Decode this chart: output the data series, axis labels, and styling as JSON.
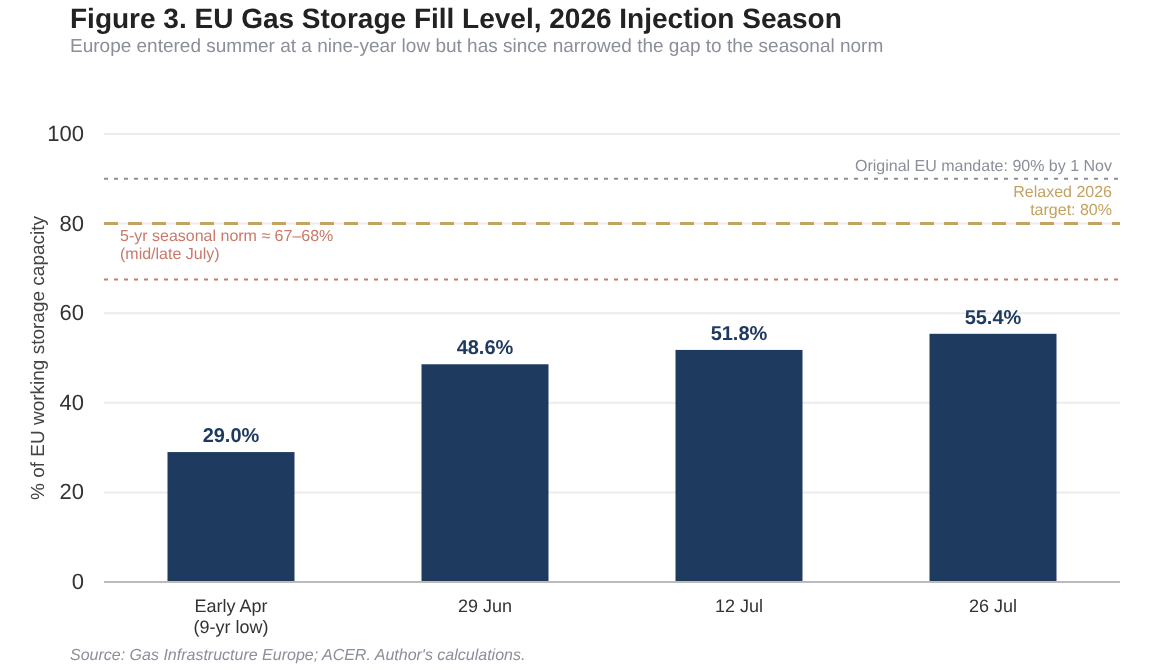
{
  "chart_data": {
    "type": "bar",
    "title": "Figure 3.  EU Gas Storage Fill Level, 2026 Injection Season",
    "subtitle": "Europe entered summer at a nine-year low but has since narrowed the gap to the seasonal norm",
    "ylabel": "% of EU working storage capacity",
    "categories": [
      "Early Apr\n(9-yr low)",
      "29 Jun",
      "12 Jul",
      "26 Jul"
    ],
    "values": [
      29.0,
      48.6,
      51.8,
      55.4
    ],
    "value_labels": [
      "29.0%",
      "48.6%",
      "51.8%",
      "55.4%"
    ],
    "color": "#1e3a5f",
    "ylim": [
      0,
      100
    ],
    "yticks": [
      0,
      20,
      40,
      60,
      80,
      100
    ],
    "grid": "y",
    "ref_lines": [
      {
        "axis": "y",
        "value": 90,
        "label": "Original EU mandate: 90% by 1 Nov",
        "color": "#8a8f99",
        "line_style": "dotted"
      },
      {
        "axis": "y",
        "value": 80,
        "label": "Relaxed 2026\ntarget: 80%",
        "color": "#c4a261",
        "line_style": "dashed"
      },
      {
        "axis": "y",
        "value": 67.5,
        "label": "5-yr seasonal norm ≈ 67–68%\n(mid/late July)",
        "color": "#c97a6a",
        "line_style": "dotted"
      }
    ],
    "annotations": [
      "Source: Gas Infrastructure Europe; ACER. Author's calculations."
    ]
  }
}
